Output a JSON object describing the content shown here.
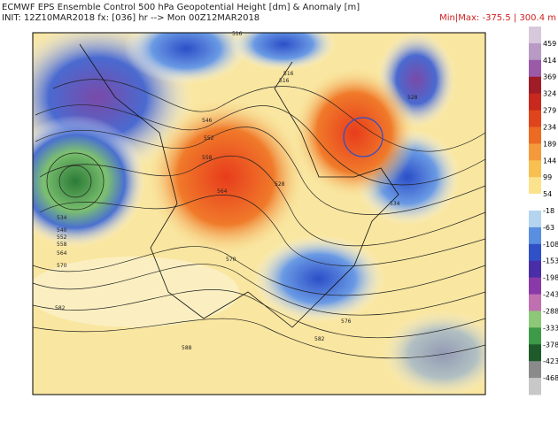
{
  "header": {
    "title": "ECMWF EPS Ensemble Control 500 hPa Geopotential Height [dm] & Anomaly [m]",
    "init": "INIT: 12Z10MAR2018 fx: [036] hr --> Mon 00Z12MAR2018",
    "minmax": "Min|Max: -375.5 | 300.4 m"
  },
  "colorbar": {
    "labels": [
      459,
      414,
      369,
      324,
      279,
      234,
      189,
      144,
      99,
      54,
      -18,
      -63,
      -108,
      -153,
      -198,
      -243,
      -288,
      -333,
      -378,
      -423,
      -468
    ],
    "colors": [
      "#d8c8dc",
      "#b89ac4",
      "#9a5aa8",
      "#a01c28",
      "#c8281e",
      "#e0441c",
      "#ec6a22",
      "#f49a3a",
      "#f8c050",
      "#fae38c",
      "#ffffff",
      "#b4d4f0",
      "#5a8ee0",
      "#3050c8",
      "#4a2ea8",
      "#8a3aa8",
      "#c070b0",
      "#8cc878",
      "#3c9a48",
      "#1e5a2a",
      "#8a8a8a",
      "#c8c8c8"
    ]
  },
  "contour_labels": [
    516,
    516,
    528,
    546,
    552,
    558,
    564,
    570,
    576,
    582,
    588,
    534,
    540,
    552,
    558,
    564,
    570,
    582,
    516,
    528,
    534
  ]
}
